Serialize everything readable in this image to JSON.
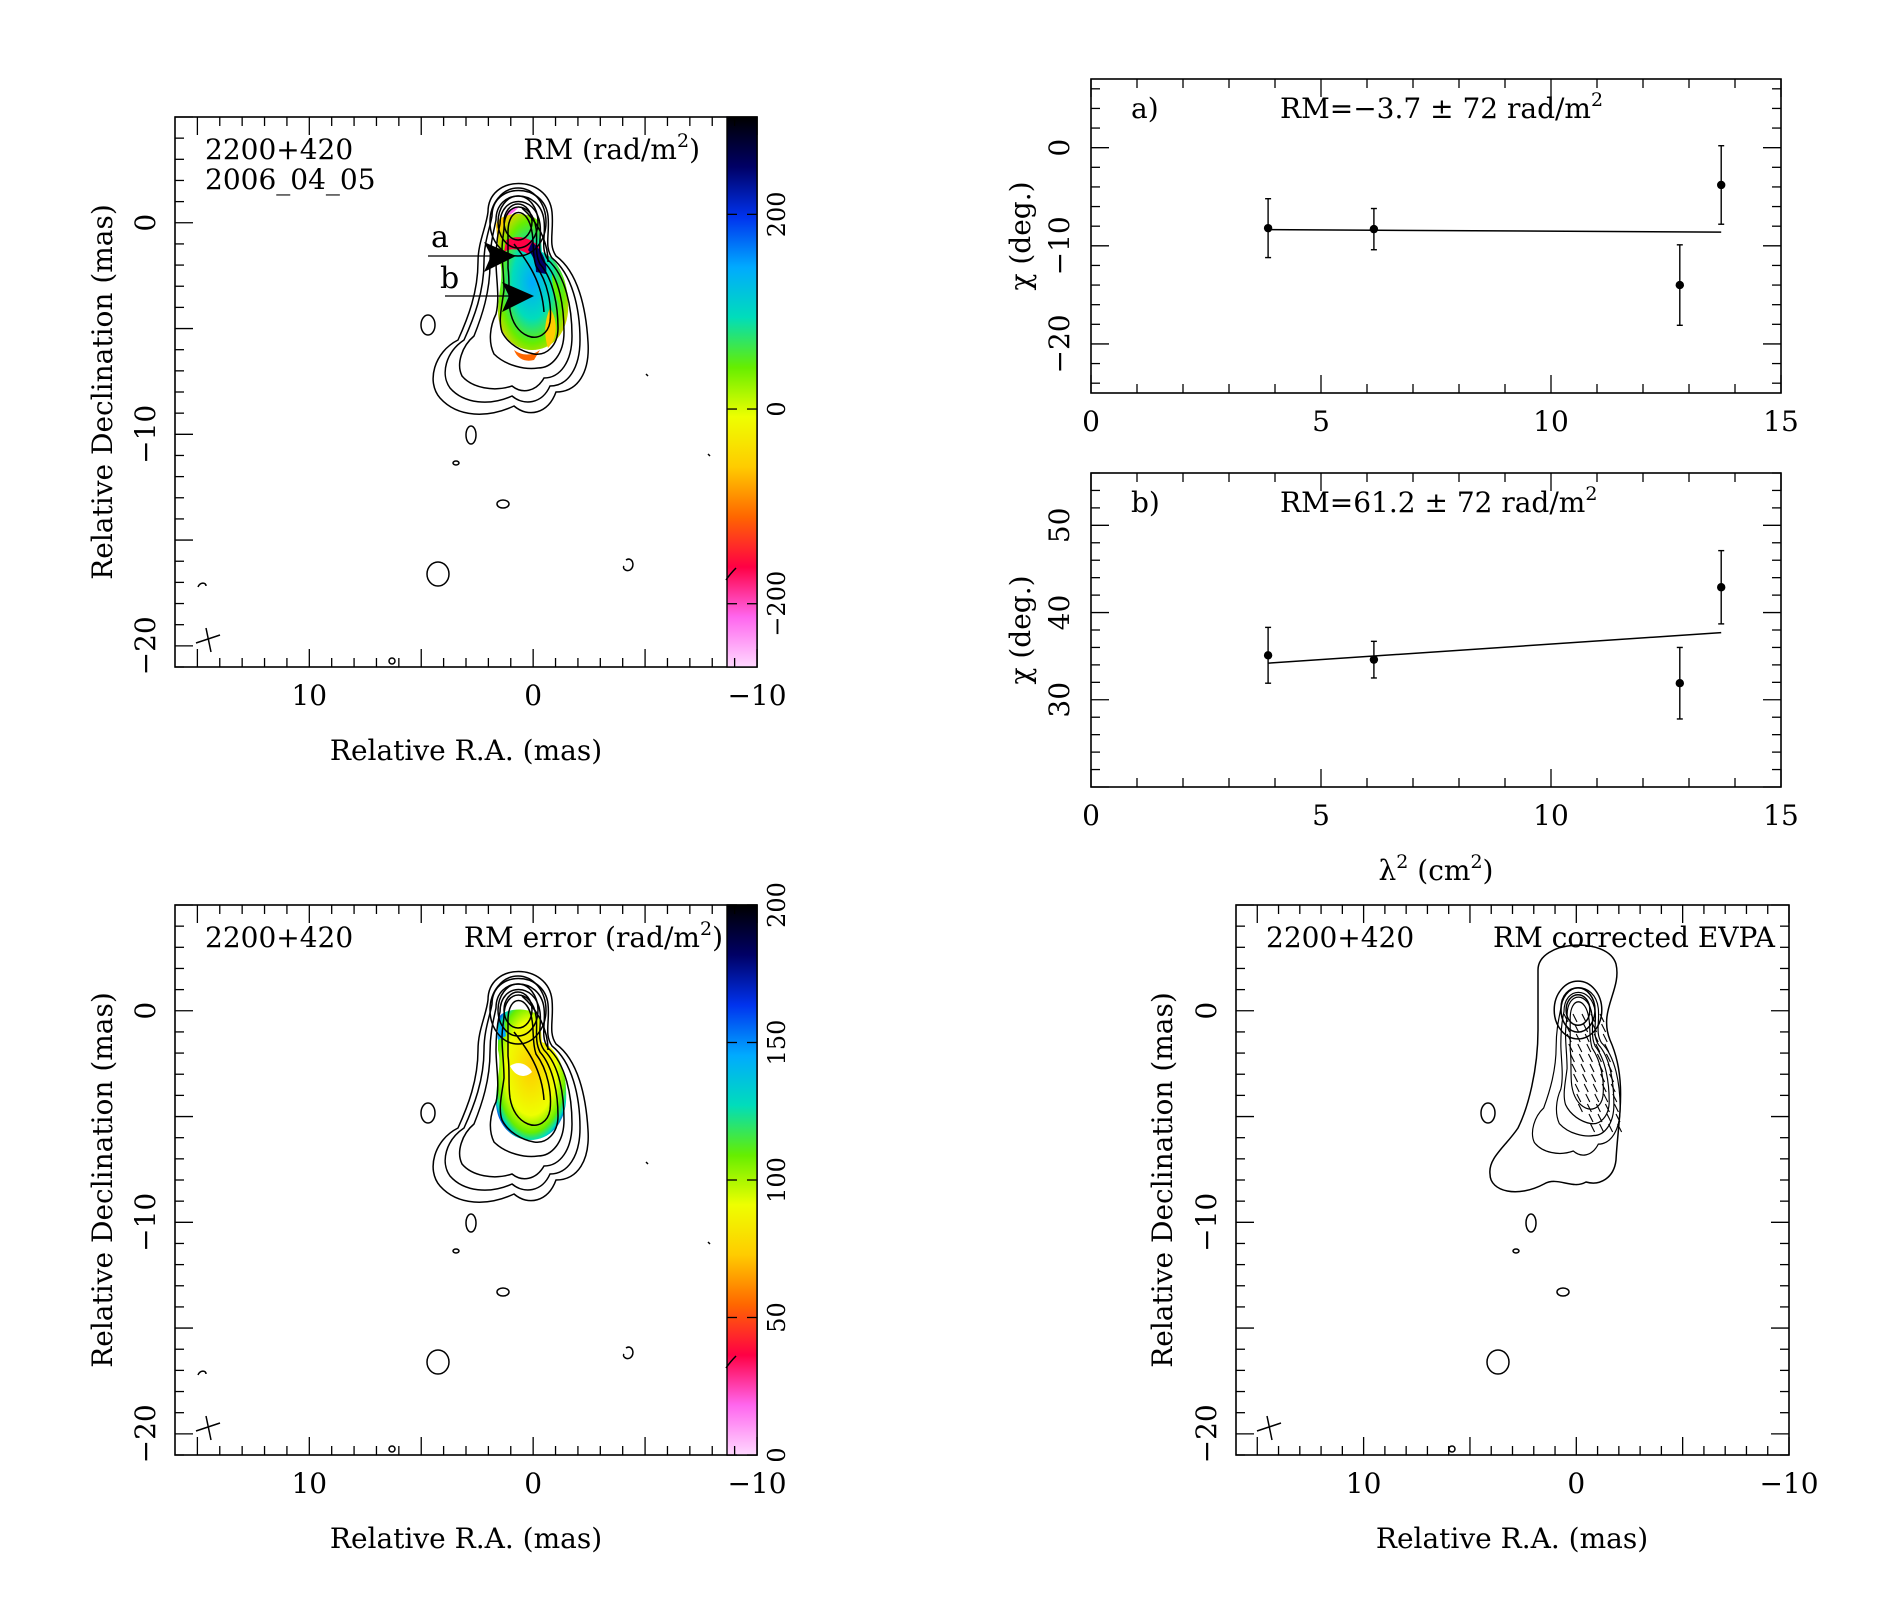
{
  "colors": {
    "ink": "#000000",
    "rm_scale": [
      "#ffd8ff",
      "#ff66ee",
      "#ff0044",
      "#ff6600",
      "#ffcc00",
      "#eeff00",
      "#66ee00",
      "#00ddbb",
      "#00aaff",
      "#0033ee",
      "#000066",
      "#000000"
    ],
    "err_scale": [
      "#ffd8ff",
      "#ff66ee",
      "#ff0044",
      "#ff6600",
      "#ffcc00",
      "#eeff00",
      "#66ee00",
      "#00ddbb",
      "#00aaff",
      "#0033ee",
      "#000066",
      "#000000"
    ]
  },
  "chart_data": [
    {
      "type": "heatmap",
      "panel": "rm-map",
      "labels": {
        "source": "2200+420",
        "epoch": "2006_04_05",
        "quantity_prefix": "RM (rad/m",
        "quantity_sup": "2",
        "quantity_suffix": ")"
      },
      "xlabel": "Relative R.A. (mas)",
      "ylabel": "Relative Declination (mas)",
      "xlim": [
        16,
        -10
      ],
      "ylim": [
        -21,
        5
      ],
      "xticks": [
        "10",
        "0",
        "−10"
      ],
      "xtick_values": [
        10,
        0,
        -10
      ],
      "yticks": [
        "−20",
        "−10",
        "0"
      ],
      "ytick_values": [
        -20,
        -10,
        0
      ],
      "colorbar": {
        "range": [
          -265,
          300
        ],
        "ticks": [
          "−200",
          "0",
          "200"
        ],
        "tick_values": [
          -200,
          0,
          200
        ]
      },
      "markers": [
        {
          "label": "a",
          "x": 0.2,
          "y": -1.6
        },
        {
          "label": "b",
          "x": -0.5,
          "y": -3.5
        }
      ]
    },
    {
      "type": "scatter",
      "panel": "fit-a",
      "panel_label": "a)",
      "annotation": {
        "prefix": "RM=−3.7 ± 72 rad/m",
        "sup": "2"
      },
      "ylabel": "χ (deg.)",
      "xlim": [
        0,
        15
      ],
      "ylim": [
        -25,
        7
      ],
      "xticks": [
        "0",
        "5",
        "10",
        "15"
      ],
      "xtick_values": [
        0,
        5,
        10,
        15
      ],
      "yticks": [
        "−20",
        "−10",
        "0"
      ],
      "ytick_values": [
        -20,
        -10,
        0
      ],
      "points": [
        {
          "x": 3.85,
          "y": -8.2,
          "err": 3.0
        },
        {
          "x": 6.15,
          "y": -8.3,
          "err": 2.1
        },
        {
          "x": 12.8,
          "y": -14.0,
          "err": 4.1
        },
        {
          "x": 13.7,
          "y": -3.8,
          "err": 4.0
        }
      ],
      "fit": [
        [
          3.85,
          -8.35
        ],
        [
          13.7,
          -8.6
        ]
      ]
    },
    {
      "type": "scatter",
      "panel": "fit-b",
      "panel_label": "b)",
      "annotation": {
        "prefix": "RM=61.2 ± 72 rad/m",
        "sup": "2"
      },
      "xlabel_prefix": "λ",
      "xlabel_sup": "2",
      "xlabel_suffix": " (cm",
      "xlabel_sup2": "2",
      "xlabel_end": ")",
      "ylabel": "χ (deg.)",
      "xlim": [
        0,
        15
      ],
      "ylim": [
        20,
        56
      ],
      "xticks": [
        "0",
        "5",
        "10",
        "15"
      ],
      "xtick_values": [
        0,
        5,
        10,
        15
      ],
      "yticks": [
        "30",
        "40",
        "50"
      ],
      "ytick_values": [
        30,
        40,
        50
      ],
      "points": [
        {
          "x": 3.85,
          "y": 35.1,
          "err": 3.2
        },
        {
          "x": 6.15,
          "y": 34.6,
          "err": 2.1
        },
        {
          "x": 12.8,
          "y": 31.9,
          "err": 4.1
        },
        {
          "x": 13.7,
          "y": 42.9,
          "err": 4.2
        }
      ],
      "fit": [
        [
          3.85,
          34.2
        ],
        [
          13.7,
          37.7
        ]
      ]
    },
    {
      "type": "heatmap",
      "panel": "rm-error-map",
      "labels": {
        "source": "2200+420",
        "quantity_prefix": "RM error (rad/m",
        "quantity_sup": "2",
        "quantity_suffix": ")"
      },
      "xlabel": "Relative R.A. (mas)",
      "ylabel": "Relative Declination (mas)",
      "xlim": [
        16,
        -10
      ],
      "ylim": [
        -21,
        5
      ],
      "xticks": [
        "10",
        "0",
        "−10"
      ],
      "xtick_values": [
        10,
        0,
        -10
      ],
      "yticks": [
        "−20",
        "−10",
        "0"
      ],
      "ytick_values": [
        -20,
        -10,
        0
      ],
      "colorbar": {
        "range": [
          0,
          200
        ],
        "ticks": [
          "0",
          "50",
          "100",
          "150",
          "200"
        ],
        "tick_values": [
          0,
          50,
          100,
          150,
          200
        ]
      }
    },
    {
      "type": "heatmap",
      "panel": "evpa-map",
      "labels": {
        "source": "2200+420",
        "quantity": "RM corrected EVPA"
      },
      "xlabel": "Relative R.A. (mas)",
      "ylabel": "Relative Declination (mas)",
      "xlim": [
        16,
        -10
      ],
      "ylim": [
        -21,
        5
      ],
      "xticks": [
        "10",
        "0",
        "−10"
      ],
      "xtick_values": [
        10,
        0,
        -10
      ],
      "yticks": [
        "−20",
        "−10",
        "0"
      ],
      "ytick_values": [
        -20,
        -10,
        0
      ]
    }
  ]
}
